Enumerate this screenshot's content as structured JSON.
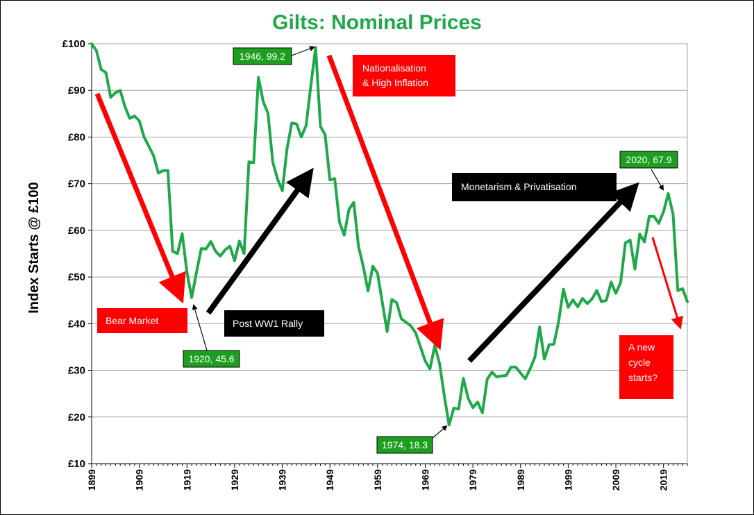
{
  "chart_data": {
    "type": "line",
    "title": "Gilts: Nominal Prices",
    "xlabel": "",
    "ylabel": "Index Starts @ £100",
    "xlim": [
      1899,
      2024
    ],
    "ylim": [
      10,
      100
    ],
    "grid": "horizontal",
    "y_ticks": [
      "£10",
      "£20",
      "£30",
      "£40",
      "£50",
      "£60",
      "£70",
      "£80",
      "£90",
      "£100"
    ],
    "x_ticks": [
      "1899",
      "1909",
      "1919",
      "1929",
      "1939",
      "1949",
      "1959",
      "1969",
      "1979",
      "1989",
      "1999",
      "2009",
      "2019"
    ],
    "series": [
      {
        "color": "#1fa84a",
        "x": [
          1899,
          1900,
          1901,
          1902,
          1903,
          1904,
          1905,
          1906,
          1907,
          1908,
          1909,
          1910,
          1911,
          1912,
          1913,
          1914,
          1915,
          1916,
          1917,
          1918,
          1919,
          1920,
          1921,
          1922,
          1923,
          1924,
          1925,
          1926,
          1927,
          1928,
          1929,
          1930,
          1931,
          1932,
          1933,
          1934,
          1935,
          1936,
          1937,
          1938,
          1939,
          1940,
          1941,
          1942,
          1943,
          1944,
          1945,
          1946,
          1947,
          1948,
          1949,
          1950,
          1951,
          1952,
          1953,
          1954,
          1955,
          1956,
          1957,
          1958,
          1959,
          1960,
          1961,
          1962,
          1963,
          1964,
          1965,
          1966,
          1967,
          1968,
          1969,
          1970,
          1971,
          1972,
          1973,
          1974,
          1975,
          1976,
          1977,
          1978,
          1979,
          1980,
          1981,
          1982,
          1983,
          1984,
          1985,
          1986,
          1987,
          1988,
          1989,
          1990,
          1991,
          1992,
          1993,
          1994,
          1995,
          1996,
          1997,
          1998,
          1999,
          2000,
          2001,
          2002,
          2003,
          2004,
          2005,
          2006,
          2007,
          2008,
          2009,
          2010,
          2011,
          2012,
          2013,
          2014,
          2015,
          2016,
          2017,
          2018,
          2019,
          2020,
          2021,
          2022,
          2023,
          2024
        ],
        "values": [
          100,
          98.5,
          94.5,
          93.8,
          88.5,
          89.5,
          90,
          86.5,
          84,
          84.5,
          83.5,
          80,
          78,
          76,
          72.3,
          72.8,
          72.8,
          55.5,
          55,
          59.3,
          51,
          45.6,
          51,
          56.1,
          56,
          57.6,
          55.5,
          54.5,
          55.8,
          56.6,
          53.5,
          57.7,
          55,
          74.7,
          74.5,
          92.8,
          87.6,
          85.1,
          74.7,
          71,
          68.5,
          77.5,
          83,
          82.8,
          80,
          82.5,
          91,
          99.2,
          82.3,
          80.5,
          70.8,
          71.1,
          61.8,
          59,
          64.5,
          66,
          56.5,
          52.3,
          47,
          52.3,
          50.8,
          44.5,
          38.3,
          45.2,
          44.5,
          41,
          40.3,
          39.5,
          38,
          35,
          32,
          30.3,
          35.3,
          31.5,
          24.6,
          18.3,
          21.9,
          21.7,
          28.3,
          24,
          22,
          23.2,
          20.9,
          28.1,
          29.6,
          28.6,
          28.8,
          28.9,
          30.7,
          30.7,
          29.4,
          28.2,
          30.3,
          32.8,
          39.3,
          32.4,
          35.5,
          35.6,
          40.5,
          47.4,
          43.5,
          45.1,
          43.6,
          45.4,
          44.3,
          45.3,
          47.1,
          44.7,
          45,
          48.9,
          46.5,
          48.8,
          57.3,
          57.9,
          51.7,
          59.2,
          57.5,
          63,
          63,
          61.5,
          64,
          67.9,
          63.5,
          47.1,
          47.5,
          44.7
        ]
      }
    ],
    "annotations": {
      "a1920": "1920, 45.6",
      "a1946": "1946, 99.2",
      "a1974": "1974, 18.3",
      "a2020": "2020, 67.9",
      "bear": "Bear Market",
      "postww1": "Post WW1 Rally",
      "national_1": "Nationalisation",
      "national_2": "& High Inflation",
      "monetarism": "Monetarism & Privatisation",
      "newcycle_1": "A new",
      "newcycle_2": "cycle",
      "newcycle_3": "starts?"
    },
    "colors": {
      "line": "#1fa84a",
      "red": "#ff0000",
      "black": "#000000",
      "green_box": "#1e9e1e"
    }
  }
}
